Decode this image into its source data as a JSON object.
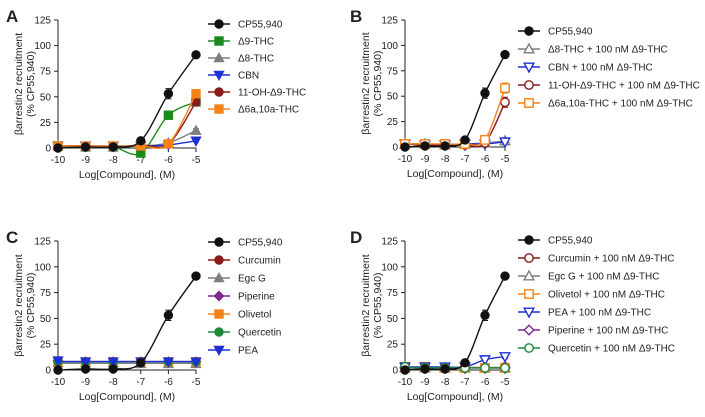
{
  "chart_data": [
    {
      "panel": "A",
      "type": "line",
      "xlabel": "Log[Compound], (M)",
      "ylabel": "βarrestin2 recruitment",
      "ylabel2": "(% CP55,940)",
      "x": [
        -10,
        -9,
        -8,
        -7,
        -6,
        -5
      ],
      "xlim": [
        -10,
        -5
      ],
      "ylim": [
        0,
        125
      ],
      "yticks": [
        0,
        25,
        50,
        75,
        100,
        125
      ],
      "legend_position": "right",
      "series": [
        {
          "name": "CP55,940",
          "color": "#111111",
          "marker": "circle",
          "filled": true,
          "fit": "curve",
          "values": [
            0,
            1,
            1,
            7,
            53,
            91
          ],
          "err": [
            0,
            0,
            1,
            2,
            5,
            2
          ]
        },
        {
          "name": "Δ9-THC",
          "color": "#1b8a1b",
          "marker": "square",
          "filled": true,
          "fit": "curve",
          "values": [
            2,
            1,
            1,
            -5,
            32,
            45
          ],
          "err": [
            0,
            0,
            0,
            1,
            3,
            3
          ]
        },
        {
          "name": "Δ8-THC",
          "color": "#7f7f7f",
          "marker": "triangle-up",
          "filled": true,
          "fit": "curve",
          "values": [
            2,
            1,
            1,
            2,
            5,
            17
          ],
          "err": [
            0,
            0,
            0,
            0,
            1,
            2
          ]
        },
        {
          "name": "CBN",
          "color": "#1f2fd6",
          "marker": "triangle-down",
          "filled": true,
          "fit": "curve",
          "values": [
            2,
            2,
            2,
            2,
            3,
            7
          ],
          "err": [
            0,
            0,
            0,
            0,
            0,
            1
          ]
        },
        {
          "name": "11-OH-Δ9-THC",
          "color": "#8b1a1a",
          "marker": "circle",
          "filled": true,
          "fit": "curve",
          "values": [
            2,
            2,
            1,
            3,
            4,
            45
          ],
          "err": [
            0,
            0,
            0,
            0,
            1,
            3
          ]
        },
        {
          "name": "Δ6a,10a-THC",
          "color": "#f58216",
          "marker": "square",
          "filled": true,
          "fit": "curve",
          "values": [
            2,
            2,
            2,
            2,
            4,
            53
          ],
          "err": [
            0,
            0,
            0,
            0,
            1,
            3
          ]
        }
      ]
    },
    {
      "panel": "B",
      "type": "line",
      "xlabel": "Log[Compound], (M)",
      "ylabel": "βarrestin2 recruitment",
      "ylabel2": "(% CP55,940)",
      "x": [
        -10,
        -9,
        -8,
        -7,
        -6,
        -5
      ],
      "xlim": [
        -10,
        -5
      ],
      "ylim": [
        0,
        125
      ],
      "yticks": [
        0,
        25,
        50,
        75,
        100,
        125
      ],
      "legend_position": "right",
      "series": [
        {
          "name": "CP55,940",
          "color": "#111111",
          "marker": "circle",
          "filled": true,
          "fit": "curve",
          "values": [
            0,
            1,
            1,
            7,
            53,
            91
          ],
          "err": [
            0,
            0,
            1,
            2,
            5,
            2
          ]
        },
        {
          "name": "Δ8-THC + 100 nM Δ9-THC",
          "color": "#7f7f7f",
          "marker": "triangle-up",
          "filled": false,
          "fit": "curve",
          "values": [
            3,
            3,
            2,
            3,
            4,
            6
          ],
          "err": [
            0,
            0,
            0,
            0,
            1,
            1
          ]
        },
        {
          "name": "CBN + 100 nM Δ9-THC",
          "color": "#1f2fd6",
          "marker": "triangle-down",
          "filled": false,
          "fit": "curve",
          "values": [
            3,
            2,
            2,
            3,
            3,
            5
          ],
          "err": [
            0,
            0,
            0,
            0,
            0,
            1
          ]
        },
        {
          "name": "11-OH-Δ9-THC + 100 nM Δ9-THC",
          "color": "#8b1a1a",
          "marker": "circle",
          "filled": false,
          "fit": "curve",
          "values": [
            3,
            2,
            2,
            2,
            4,
            44
          ],
          "err": [
            0,
            0,
            0,
            0,
            1,
            5
          ]
        },
        {
          "name": "Δ6a,10a-THC + 100 nM Δ9-THC",
          "color": "#f58216",
          "marker": "square",
          "filled": false,
          "fit": "curve",
          "values": [
            3,
            3,
            3,
            3,
            7,
            58
          ],
          "err": [
            0,
            0,
            0,
            0,
            1,
            5
          ]
        }
      ]
    },
    {
      "panel": "C",
      "type": "line",
      "xlabel": "Log[Compound], (M)",
      "ylabel": "βarrestin2 recruitment",
      "ylabel2": "(% CP55,940)",
      "x": [
        -10,
        -9,
        -8,
        -7,
        -6,
        -5
      ],
      "xlim": [
        -10,
        -5
      ],
      "ylim": [
        0,
        125
      ],
      "yticks": [
        0,
        25,
        50,
        75,
        100,
        125
      ],
      "legend_position": "right",
      "series": [
        {
          "name": "CP55,940",
          "color": "#111111",
          "marker": "circle",
          "filled": true,
          "fit": "curve",
          "values": [
            0,
            1,
            1,
            7,
            53,
            91
          ],
          "err": [
            0,
            0,
            1,
            2,
            5,
            2
          ]
        },
        {
          "name": "Curcumin",
          "color": "#8b1a1a",
          "marker": "circle",
          "filled": true,
          "fit": "flat",
          "values": [
            8,
            8,
            8,
            8,
            8,
            8
          ],
          "err": [
            0,
            0,
            0,
            0,
            0,
            0
          ]
        },
        {
          "name": "Egc G",
          "color": "#7f7f7f",
          "marker": "triangle-up",
          "filled": true,
          "fit": "flat",
          "values": [
            7,
            7,
            7,
            6,
            6,
            6
          ],
          "err": [
            0,
            0,
            0,
            0,
            0,
            0
          ]
        },
        {
          "name": "Piperine",
          "color": "#7b2a8f",
          "marker": "diamond",
          "filled": true,
          "fit": "flat",
          "values": [
            9,
            8,
            8,
            8,
            8,
            8
          ],
          "err": [
            0,
            0,
            0,
            0,
            0,
            0
          ]
        },
        {
          "name": "Olivetol",
          "color": "#f58216",
          "marker": "square",
          "filled": true,
          "fit": "flat",
          "values": [
            8,
            8,
            8,
            8,
            8,
            8
          ],
          "err": [
            0,
            0,
            0,
            0,
            0,
            0
          ]
        },
        {
          "name": "Quercetin",
          "color": "#1b8a3a",
          "marker": "circle",
          "filled": true,
          "fit": "flat",
          "values": [
            8,
            8,
            8,
            8,
            8,
            8
          ],
          "err": [
            0,
            0,
            0,
            0,
            0,
            0
          ]
        },
        {
          "name": "PEA",
          "color": "#1f2fd6",
          "marker": "triangle-down",
          "filled": true,
          "fit": "flat",
          "values": [
            9,
            8,
            8,
            8,
            8,
            8
          ],
          "err": [
            0,
            0,
            0,
            0,
            0,
            0
          ]
        }
      ]
    },
    {
      "panel": "D",
      "type": "line",
      "xlabel": "Log[Compound], (M)",
      "ylabel": "βarrestin2 recruitment",
      "ylabel2": "(% CP55,940)",
      "x": [
        -10,
        -9,
        -8,
        -7,
        -6,
        -5
      ],
      "xlim": [
        -10,
        -5
      ],
      "ylim": [
        0,
        125
      ],
      "yticks": [
        0,
        25,
        50,
        75,
        100,
        125
      ],
      "legend_position": "right",
      "series": [
        {
          "name": "CP55,940",
          "color": "#111111",
          "marker": "circle",
          "filled": true,
          "fit": "curve",
          "values": [
            0,
            1,
            1,
            7,
            53,
            91
          ],
          "err": [
            0,
            0,
            1,
            2,
            5,
            2
          ]
        },
        {
          "name": "Curcumin + 100 nM Δ9-THC",
          "color": "#8b1a1a",
          "marker": "circle",
          "filled": false,
          "fit": "flat",
          "values": [
            3,
            2,
            2,
            2,
            2,
            3
          ],
          "err": [
            0,
            0,
            0,
            0,
            0,
            0
          ]
        },
        {
          "name": "Egc G + 100 nM Δ9-THC",
          "color": "#7f7f7f",
          "marker": "triangle-up",
          "filled": false,
          "fit": "flat",
          "values": [
            2,
            2,
            2,
            2,
            2,
            2
          ],
          "err": [
            0,
            0,
            0,
            0,
            0,
            0
          ]
        },
        {
          "name": "Olivetol + 100 nM Δ9-THC",
          "color": "#f58216",
          "marker": "square",
          "filled": false,
          "fit": "flat",
          "values": [
            3,
            3,
            2,
            2,
            2,
            2
          ],
          "err": [
            0,
            0,
            0,
            0,
            0,
            0
          ]
        },
        {
          "name": "PEA + 100 nM Δ9-THC",
          "color": "#1f2fd6",
          "marker": "triangle-down",
          "filled": false,
          "fit": "curve",
          "values": [
            3,
            3,
            3,
            3,
            10,
            13
          ],
          "err": [
            0,
            0,
            0,
            0,
            1,
            2
          ]
        },
        {
          "name": "Piperine + 100 nM Δ9-THC",
          "color": "#7b2a8f",
          "marker": "diamond",
          "filled": false,
          "fit": "flat",
          "values": [
            2,
            2,
            2,
            2,
            2,
            2
          ],
          "err": [
            0,
            0,
            0,
            0,
            0,
            0
          ]
        },
        {
          "name": "Quercetin + 100 nM Δ9-THC",
          "color": "#1b8a3a",
          "marker": "circle",
          "filled": false,
          "fit": "flat",
          "values": [
            3,
            2,
            2,
            2,
            2,
            2
          ],
          "err": [
            0,
            0,
            0,
            0,
            0,
            0
          ]
        }
      ]
    }
  ]
}
